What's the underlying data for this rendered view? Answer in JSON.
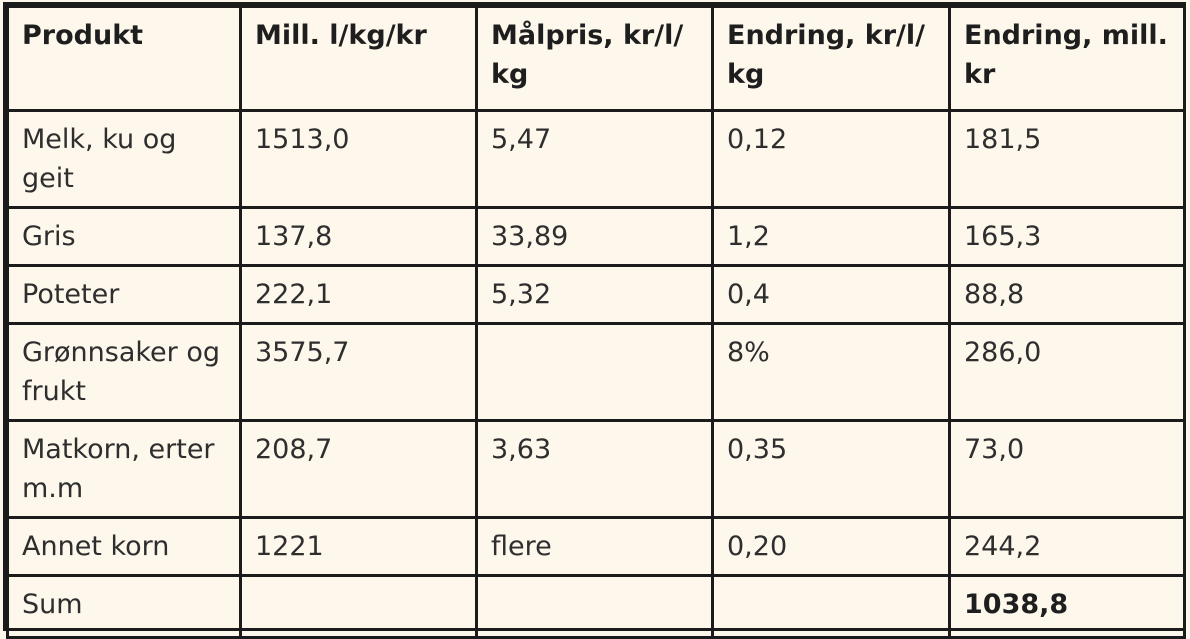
{
  "table": {
    "headers": [
      "Produkt",
      "Mill. l/kg/kr",
      "Målpris, kr/l/ kg",
      "Endring, kr/l/ kg",
      "Endring, mill. kr"
    ],
    "rows": [
      [
        "Melk, ku og geit",
        "1513,0",
        "5,47",
        "0,12",
        "181,5"
      ],
      [
        "Gris",
        "137,8",
        "33,89",
        "1,2",
        "165,3"
      ],
      [
        "Poteter",
        "222,1",
        "5,32",
        "0,4",
        "88,8"
      ],
      [
        "Grønnsaker og frukt",
        "3575,7",
        "",
        "8%",
        "286,0"
      ],
      [
        "Matkorn, erter m.m",
        "208,7",
        "3,63",
        "0,35",
        "73,0"
      ],
      [
        "Annet korn",
        "1221",
        "flere",
        "0,20",
        "244,2"
      ],
      [
        "Sum",
        "",
        "",
        "",
        "1038,8"
      ]
    ]
  }
}
